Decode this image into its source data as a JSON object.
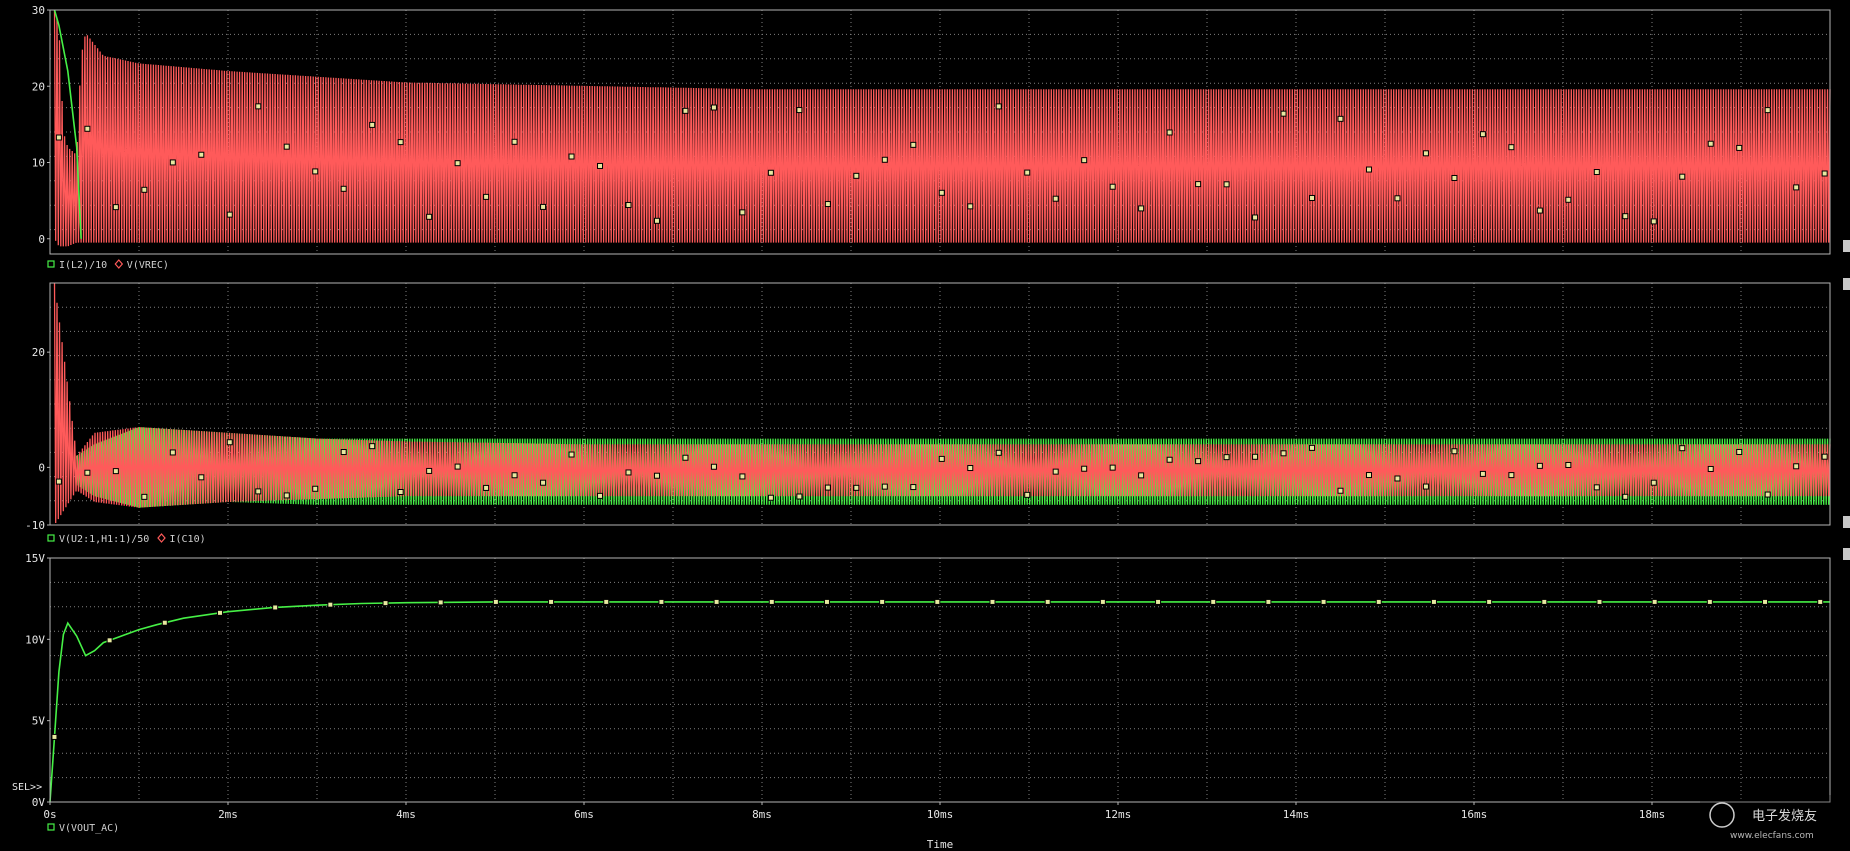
{
  "colors": {
    "background": "#000000",
    "grid": "#808080",
    "frame": "#b4b4b4",
    "red": "#ff5a5a",
    "green": "#46f046",
    "marker": "#e8e8a0"
  },
  "chart_data": [
    {
      "type": "line",
      "xlabel": "",
      "xlim": [
        0,
        20
      ],
      "ylim": [
        -2,
        30
      ],
      "ytick_labels": [
        "30",
        "20",
        "10",
        "0"
      ],
      "ytick_values": [
        30,
        20,
        10,
        0
      ],
      "legend": [
        {
          "name": "I(L2)/10",
          "color": "#46f046",
          "marker": "square"
        },
        {
          "name": "V(VREC)",
          "color": "#ff5a5a",
          "marker": "diamond"
        }
      ],
      "series": [
        {
          "name": "V(VREC)",
          "color": "#ff5a5a",
          "x": [
            0.05,
            0.1,
            0.15,
            0.2,
            0.3,
            0.35,
            0.4,
            0.6,
            1,
            2,
            4,
            8,
            12,
            16,
            20
          ],
          "y_max": [
            30,
            28,
            14,
            12,
            11,
            24,
            27,
            24,
            23,
            22,
            20.5,
            19.6,
            19.6,
            19.6,
            19.6
          ],
          "y_min": [
            0,
            -1,
            -1,
            -1,
            -0.5,
            -0.5,
            -0.5,
            -0.5,
            -0.5,
            -0.5,
            -0.5,
            -0.5,
            -0.5,
            -0.5,
            -0.5
          ]
        },
        {
          "name": "I(L2)/10",
          "color": "#46f046",
          "x": [
            0.05,
            0.1,
            0.2,
            0.3,
            0.35
          ],
          "y": [
            30,
            28,
            22,
            12,
            0
          ]
        }
      ]
    },
    {
      "type": "line",
      "xlabel": "",
      "xlim": [
        0,
        20
      ],
      "ylim": [
        -10,
        32
      ],
      "ytick_labels": [
        "20",
        "0",
        "-10"
      ],
      "ytick_values": [
        20,
        0,
        -10
      ],
      "legend": [
        {
          "name": "V(U2:1,H1:1)/50",
          "color": "#46f046",
          "marker": "square"
        },
        {
          "name": "I(C10)",
          "color": "#ff5a5a",
          "marker": "diamond"
        }
      ],
      "series": [
        {
          "name": "V(U2:1,H1:1)/50",
          "color": "#46f046",
          "x": [
            0.3,
            0.5,
            1,
            2,
            3,
            4,
            6,
            10,
            14,
            20
          ],
          "y_max": [
            2,
            4,
            7,
            6,
            5,
            5,
            5,
            5,
            5,
            5
          ],
          "y_min": [
            -3,
            -5,
            -7,
            -6,
            -6.5,
            -6.5,
            -6.5,
            -6.5,
            -6.5,
            -6.5
          ]
        },
        {
          "name": "I(C10)",
          "color": "#ff5a5a",
          "x": [
            0.05,
            0.3,
            0.5,
            1,
            2,
            3,
            4,
            6,
            10,
            14,
            20
          ],
          "y_max": [
            32,
            2,
            6,
            7,
            6,
            5,
            4.5,
            4,
            4,
            4,
            4
          ],
          "y_min": [
            -10,
            -4,
            -6,
            -7,
            -6,
            -5.5,
            -5,
            -5,
            -5,
            -5,
            -5
          ]
        }
      ]
    },
    {
      "type": "line",
      "xlabel": "Time",
      "xlim": [
        0,
        20
      ],
      "ylim": [
        0,
        15
      ],
      "ytick_labels": [
        "15V",
        "10V",
        "5V",
        "0V"
      ],
      "ytick_values": [
        15,
        10,
        5,
        0
      ],
      "xtick_labels": [
        "0s",
        "2ms",
        "4ms",
        "6ms",
        "8ms",
        "10ms",
        "12ms",
        "14ms",
        "16ms",
        "18ms"
      ],
      "xtick_values": [
        0,
        2,
        4,
        6,
        8,
        10,
        12,
        14,
        16,
        18
      ],
      "legend": [
        {
          "name": "V(VOUT_AC)",
          "color": "#46f046",
          "marker": "square"
        }
      ],
      "series": [
        {
          "name": "V(VOUT_AC)",
          "color": "#46f046",
          "x": [
            0,
            0.05,
            0.1,
            0.15,
            0.2,
            0.3,
            0.4,
            0.5,
            0.6,
            0.8,
            1.0,
            1.2,
            1.5,
            2.0,
            2.5,
            3.0,
            3.5,
            4.0,
            5,
            6,
            8,
            10,
            12,
            14,
            16,
            18,
            20
          ],
          "y": [
            0,
            4,
            8,
            10.3,
            11.0,
            10.2,
            9.0,
            9.3,
            9.8,
            10.2,
            10.6,
            10.9,
            11.3,
            11.7,
            11.95,
            12.1,
            12.2,
            12.25,
            12.3,
            12.3,
            12.3,
            12.3,
            12.3,
            12.3,
            12.3,
            12.3,
            12.3
          ]
        }
      ]
    }
  ],
  "cursor_label": "SEL>>",
  "watermark": {
    "line1": "电子发烧友",
    "line2": "www.elecfans.com"
  }
}
